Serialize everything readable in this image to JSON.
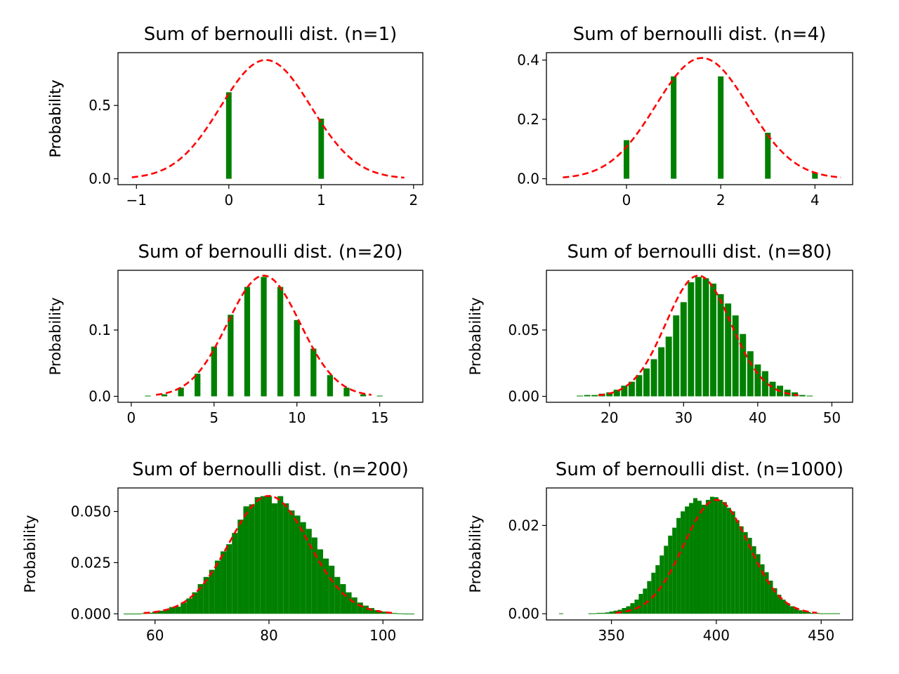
{
  "colors": {
    "bar": "#008000",
    "fit": "#ff0000",
    "axis": "#000000",
    "background": "#ffffff"
  },
  "chart_data": [
    {
      "type": "bar",
      "title": "Sum of bernoulli dist. (n=1)",
      "xlabel": "",
      "ylabel": "Probability",
      "xlim": [
        -1.2,
        2.1
      ],
      "ylim": [
        -0.04,
        0.86
      ],
      "xticks": [
        -1,
        0,
        1,
        2
      ],
      "xtick_labels": [
        "−1",
        "0",
        "1",
        "2"
      ],
      "yticks": [
        0,
        0.5
      ],
      "ytick_labels": [
        "0.0",
        "0.5"
      ],
      "bar_width": 0.06,
      "x": [
        0,
        1
      ],
      "values": [
        0.59,
        0.41
      ],
      "fit": {
        "type": "normal",
        "mean": 0.4,
        "std": 0.49,
        "peak": 0.81,
        "x_range": [
          -1.05,
          1.9
        ]
      },
      "grid": false
    },
    {
      "type": "bar",
      "title": "Sum of bernoulli dist. (n=4)",
      "xlabel": "",
      "ylabel": "Probability",
      "xlim": [
        -1.7,
        4.8
      ],
      "ylim": [
        -0.02,
        0.425
      ],
      "xticks": [
        0,
        2,
        4
      ],
      "xtick_labels": [
        "0",
        "2",
        "4"
      ],
      "yticks": [
        0,
        0.2,
        0.4
      ],
      "ytick_labels": [
        "0.0",
        "0.2",
        "0.4"
      ],
      "bar_width": 0.12,
      "x": [
        0,
        1,
        2,
        3,
        4
      ],
      "values": [
        0.13,
        0.345,
        0.345,
        0.155,
        0.02
      ],
      "fit": {
        "type": "normal",
        "mean": 1.6,
        "std": 0.98,
        "peak": 0.407,
        "x_range": [
          -1.35,
          4.55
        ]
      },
      "grid": false
    },
    {
      "type": "bar",
      "title": "Sum of bernoulli dist. (n=20)",
      "xlabel": "",
      "ylabel": "Probability",
      "xlim": [
        -0.8,
        17.6
      ],
      "ylim": [
        -0.009,
        0.19
      ],
      "xticks": [
        0,
        5,
        10,
        15
      ],
      "xtick_labels": [
        "0",
        "5",
        "10",
        "15"
      ],
      "yticks": [
        0,
        0.1
      ],
      "ytick_labels": [
        "0.0",
        "0.1"
      ],
      "bar_width": 0.35,
      "x": [
        1,
        2,
        3,
        4,
        5,
        6,
        7,
        8,
        9,
        10,
        11,
        12,
        13,
        14,
        15
      ],
      "values": [
        0.001,
        0.003,
        0.013,
        0.034,
        0.075,
        0.123,
        0.165,
        0.18,
        0.165,
        0.115,
        0.072,
        0.032,
        0.013,
        0.003,
        0.001
      ],
      "fit": {
        "type": "normal",
        "mean": 8,
        "std": 2.19,
        "peak": 0.182,
        "x_range": [
          1.5,
          14.5
        ]
      },
      "grid": false
    },
    {
      "type": "bar",
      "title": "Sum of bernoulli dist. (n=80)",
      "xlabel": "",
      "ylabel": "Probability",
      "xlim": [
        11.5,
        52.8
      ],
      "ylim": [
        -0.0045,
        0.095
      ],
      "xticks": [
        20,
        30,
        40,
        50
      ],
      "xtick_labels": [
        "20",
        "30",
        "40",
        "50"
      ],
      "yticks": [
        0,
        0.05
      ],
      "ytick_labels": [
        "0.00",
        "0.05"
      ],
      "bar_width": 0.85,
      "x": [
        16,
        17,
        18,
        19,
        20,
        21,
        22,
        23,
        24,
        25,
        26,
        27,
        28,
        29,
        30,
        31,
        32,
        33,
        34,
        35,
        36,
        37,
        38,
        39,
        40,
        41,
        42,
        43,
        44,
        45,
        46,
        47
      ],
      "values": [
        0.0005,
        0.001,
        0.001,
        0.002,
        0.003,
        0.005,
        0.008,
        0.011,
        0.016,
        0.021,
        0.028,
        0.037,
        0.045,
        0.061,
        0.071,
        0.086,
        0.09,
        0.089,
        0.085,
        0.077,
        0.07,
        0.061,
        0.047,
        0.034,
        0.024,
        0.019,
        0.011,
        0.008,
        0.005,
        0.003,
        0.001,
        0.0005
      ],
      "fit": {
        "type": "normal",
        "mean": 32,
        "std": 4.38,
        "peak": 0.091,
        "x_range": [
          18.5,
          45.5
        ]
      },
      "grid": false
    },
    {
      "type": "bar",
      "title": "Sum of bernoulli dist. (n=200)",
      "xlabel": "",
      "ylabel": "Probability",
      "xlim": [
        53.5,
        107
      ],
      "ylim": [
        -0.003,
        0.0615
      ],
      "xticks": [
        60,
        80,
        100
      ],
      "xtick_labels": [
        "60",
        "80",
        "100"
      ],
      "yticks": [
        0,
        0.025,
        0.05
      ],
      "ytick_labels": [
        "0.000",
        "0.025",
        "0.050"
      ],
      "bar_width": 1.0,
      "x": [
        55,
        56,
        57,
        58,
        59,
        60,
        61,
        62,
        63,
        64,
        65,
        66,
        67,
        68,
        69,
        70,
        71,
        72,
        73,
        74,
        75,
        76,
        77,
        78,
        79,
        80,
        81,
        82,
        83,
        84,
        85,
        86,
        87,
        88,
        89,
        90,
        91,
        92,
        93,
        94,
        95,
        96,
        97,
        98,
        99,
        100,
        101,
        102,
        103,
        104,
        105
      ],
      "values": [
        0.0001,
        0.0001,
        0.0001,
        0.0003,
        0.0005,
        0.001,
        0.0015,
        0.0022,
        0.0033,
        0.0035,
        0.0055,
        0.0075,
        0.0105,
        0.0145,
        0.018,
        0.0215,
        0.026,
        0.0305,
        0.034,
        0.0395,
        0.046,
        0.0525,
        0.0535,
        0.057,
        0.0575,
        0.0575,
        0.054,
        0.0575,
        0.054,
        0.0505,
        0.048,
        0.0448,
        0.0415,
        0.0373,
        0.0315,
        0.027,
        0.0235,
        0.018,
        0.0145,
        0.0105,
        0.008,
        0.0055,
        0.004,
        0.0028,
        0.0018,
        0.0011,
        0.0007,
        0.0004,
        0.0002,
        0.0001,
        0.0001
      ],
      "fit": {
        "type": "normal",
        "mean": 80,
        "std": 6.93,
        "peak": 0.0576,
        "x_range": [
          58,
          102
        ]
      },
      "grid": false
    },
    {
      "type": "bar",
      "title": "Sum of bernoulli dist. (n=1000)",
      "xlabel": "",
      "ylabel": "Probability",
      "xlim": [
        319,
        465
      ],
      "ylim": [
        -0.0014,
        0.0285
      ],
      "xticks": [
        350,
        400,
        450
      ],
      "xtick_labels": [
        "350",
        "400",
        "450"
      ],
      "yticks": [
        0,
        0.02
      ],
      "ytick_labels": [
        "0.00",
        "0.02"
      ],
      "bar_width": 2.0,
      "x": [
        326,
        340,
        342,
        344,
        346,
        348,
        350,
        352,
        354,
        356,
        358,
        360,
        362,
        364,
        366,
        368,
        370,
        372,
        374,
        376,
        378,
        380,
        382,
        384,
        386,
        388,
        390,
        392,
        394,
        396,
        398,
        400,
        402,
        404,
        406,
        408,
        410,
        412,
        414,
        416,
        418,
        420,
        422,
        424,
        426,
        428,
        430,
        432,
        434,
        436,
        438,
        440,
        442,
        444,
        446,
        448,
        450,
        452,
        454,
        456,
        458
      ],
      "values": [
        0.0001,
        0.0001,
        0.0001,
        0.0002,
        0.0002,
        0.0003,
        0.0005,
        0.0007,
        0.0009,
        0.0013,
        0.0017,
        0.0024,
        0.0032,
        0.0045,
        0.0057,
        0.0074,
        0.0093,
        0.011,
        0.0132,
        0.0154,
        0.0177,
        0.0195,
        0.0217,
        0.0232,
        0.0243,
        0.0251,
        0.0262,
        0.0256,
        0.0247,
        0.0258,
        0.0265,
        0.0264,
        0.0258,
        0.0253,
        0.024,
        0.0232,
        0.0212,
        0.0198,
        0.0185,
        0.0172,
        0.0153,
        0.0135,
        0.0112,
        0.0094,
        0.0075,
        0.0058,
        0.0043,
        0.0032,
        0.0024,
        0.0017,
        0.0012,
        0.0008,
        0.0005,
        0.0004,
        0.0002,
        0.0002,
        0.0001,
        0.0001,
        0.0001,
        0.0001,
        0.0001
      ],
      "fit": {
        "type": "normal",
        "mean": 400,
        "std": 15.49,
        "peak": 0.0258,
        "x_range": [
          352,
          448
        ]
      },
      "grid": false
    }
  ]
}
